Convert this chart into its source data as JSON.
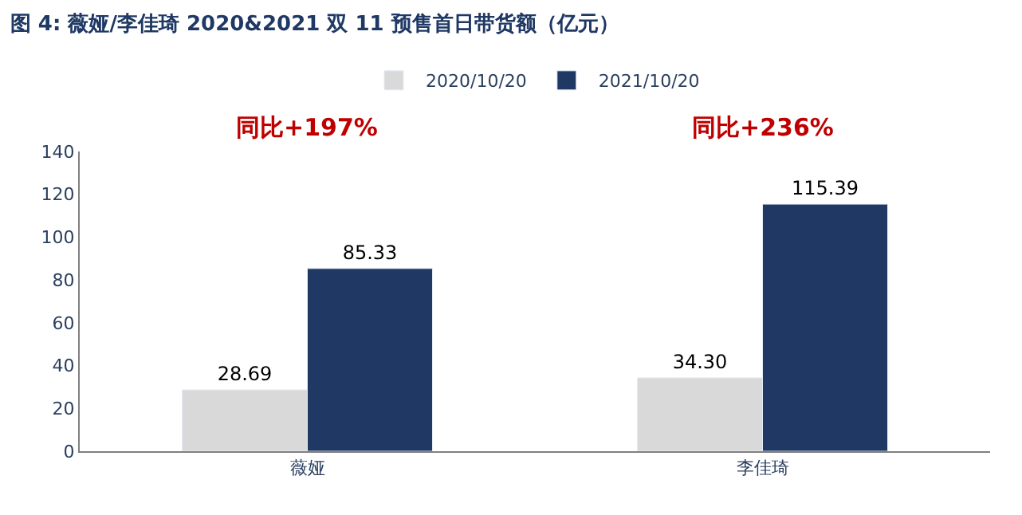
{
  "chart_data": {
    "type": "bar",
    "title": "图 4: 薇娅/李佳琦 2020&2021 双 11 预售首日带货额（亿元）",
    "categories": [
      "薇娅",
      "李佳琦"
    ],
    "series": [
      {
        "name": "2020/10/20",
        "color": "#d9d9d9",
        "values": [
          28.69,
          34.3
        ],
        "value_labels": [
          "28.69",
          "34.30"
        ]
      },
      {
        "name": "2021/10/20",
        "color": "#1f3864",
        "values": [
          85.33,
          115.39
        ],
        "value_labels": [
          "85.33",
          "115.39"
        ]
      }
    ],
    "annotations": [
      "同比+197%",
      "同比+236%"
    ],
    "ylim": [
      0,
      140
    ],
    "yticks": [
      0,
      20,
      40,
      60,
      80,
      100,
      120,
      140
    ],
    "legend": "top"
  }
}
